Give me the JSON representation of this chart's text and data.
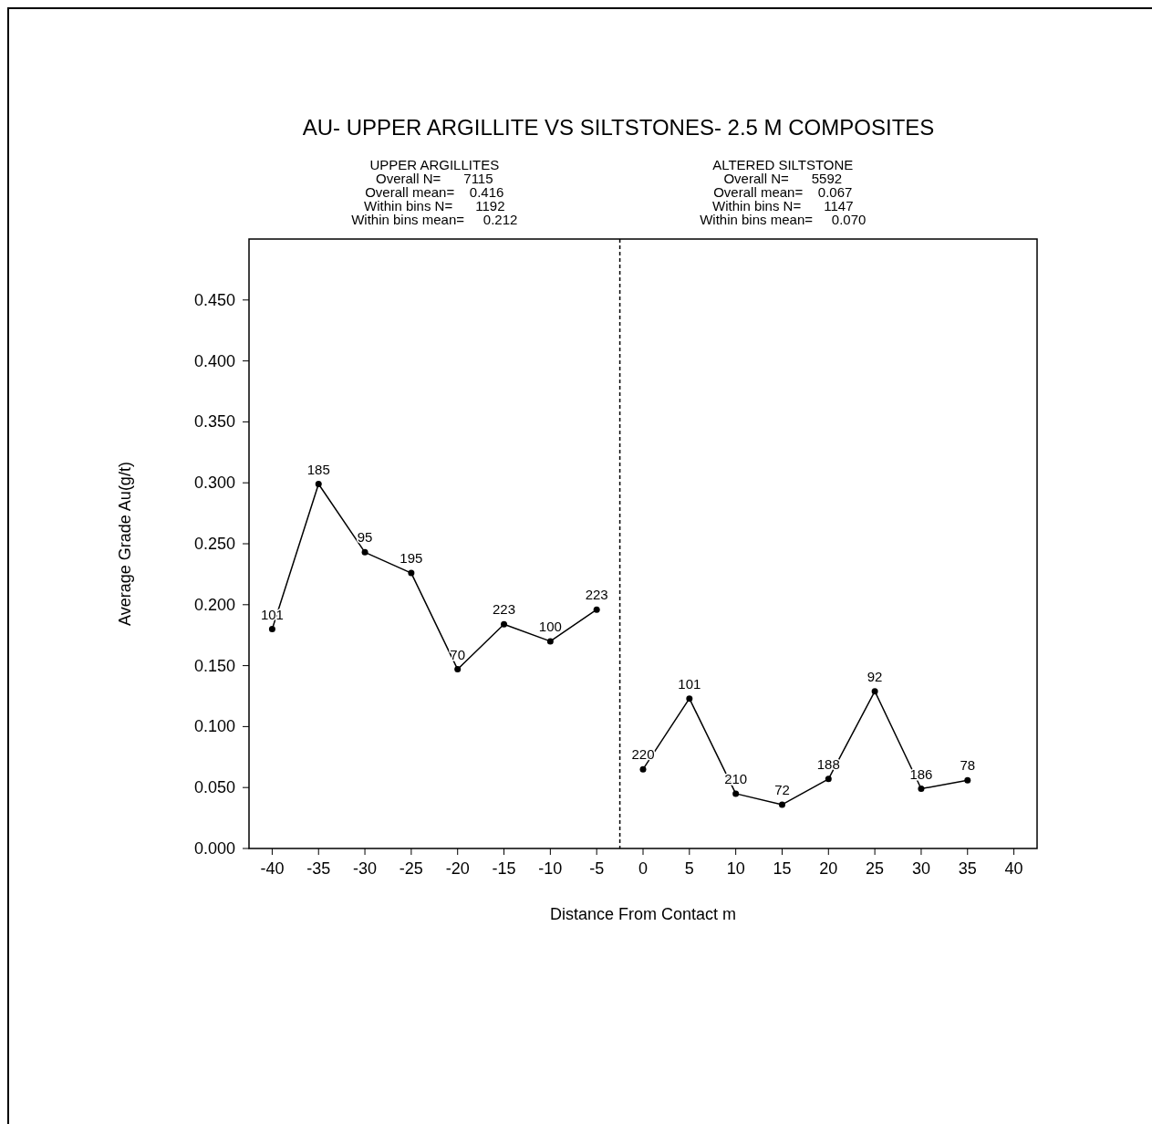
{
  "chart_data": {
    "type": "line",
    "title": "AU- UPPER ARGILLITE VS SILTSTONES- 2.5 M COMPOSITES",
    "xlabel": "Distance From Contact m",
    "ylabel": "Average Grade Au(g/t)",
    "annotations": [
      "UPPER ARGILLITES\nOverall N=      7115\nOverall mean=    0.416\nWithin bins N=      1192\nWithin bins mean=     0.212",
      "ALTERED SILTSTONE\nOverall N=      5592\nOverall mean=    0.067\nWithin bins N=      1147\nWithin bins mean=     0.070",
      {
        "text": "101",
        "x": -40,
        "y": 0.18
      },
      {
        "text": "185",
        "x": -35,
        "y": 0.299
      },
      {
        "text": "95",
        "x": -30,
        "y": 0.243
      },
      {
        "text": "195",
        "x": -25,
        "y": 0.226
      },
      {
        "text": "70",
        "x": -20,
        "y": 0.147
      },
      {
        "text": "223",
        "x": -15,
        "y": 0.184
      },
      {
        "text": "100",
        "x": -10,
        "y": 0.17
      },
      {
        "text": "223",
        "x": -5,
        "y": 0.196
      },
      {
        "text": "220",
        "x": 0,
        "y": 0.065
      },
      {
        "text": "101",
        "x": 5,
        "y": 0.123
      },
      {
        "text": "210",
        "x": 10,
        "y": 0.045
      },
      {
        "text": "72",
        "x": 15,
        "y": 0.036
      },
      {
        "text": "188",
        "x": 20,
        "y": 0.057
      },
      {
        "text": "92",
        "x": 25,
        "y": 0.129
      },
      {
        "text": "186",
        "x": 30,
        "y": 0.049
      },
      {
        "text": "78",
        "x": 35,
        "y": 0.056
      }
    ],
    "series": [
      {
        "color": "#000000",
        "x": [
          -40,
          -35,
          -30,
          -25,
          -20,
          -15,
          -10,
          -5
        ],
        "values": [
          0.18,
          0.299,
          0.243,
          0.226,
          0.147,
          0.184,
          0.17,
          0.196
        ]
      },
      {
        "color": "#000000",
        "x": [
          0,
          5,
          10,
          15,
          20,
          25,
          30,
          35
        ],
        "values": [
          0.065,
          0.123,
          0.045,
          0.036,
          0.057,
          0.129,
          0.049,
          0.056
        ]
      }
    ],
    "xlim": [
      -42.5,
      42.5
    ],
    "xticks": [
      -40,
      -35,
      -30,
      -25,
      -20,
      -15,
      -10,
      -5,
      0,
      5,
      10,
      15,
      20,
      25,
      30,
      35,
      40
    ],
    "ylim": [
      0,
      0.5
    ],
    "yticks": [
      {
        "value": 0,
        "label": "0.000"
      },
      {
        "value": 0.05,
        "label": "0.050"
      },
      {
        "value": 0.1,
        "label": "0.100"
      },
      {
        "value": 0.15,
        "label": "0.150"
      },
      {
        "value": 0.2,
        "label": "0.200"
      },
      {
        "value": 0.25,
        "label": "0.250"
      },
      {
        "value": 0.3,
        "label": "0.300"
      },
      {
        "value": 0.35,
        "label": "0.350"
      },
      {
        "value": 0.4,
        "label": "0.400"
      },
      {
        "value": 0.45,
        "label": "0.450"
      }
    ],
    "ref_lines": [
      {
        "axis": "x",
        "value": -2.5,
        "color": "#000000",
        "line_style": "dashed"
      }
    ],
    "grid": false,
    "marker": "circle",
    "line_style": "solid"
  }
}
